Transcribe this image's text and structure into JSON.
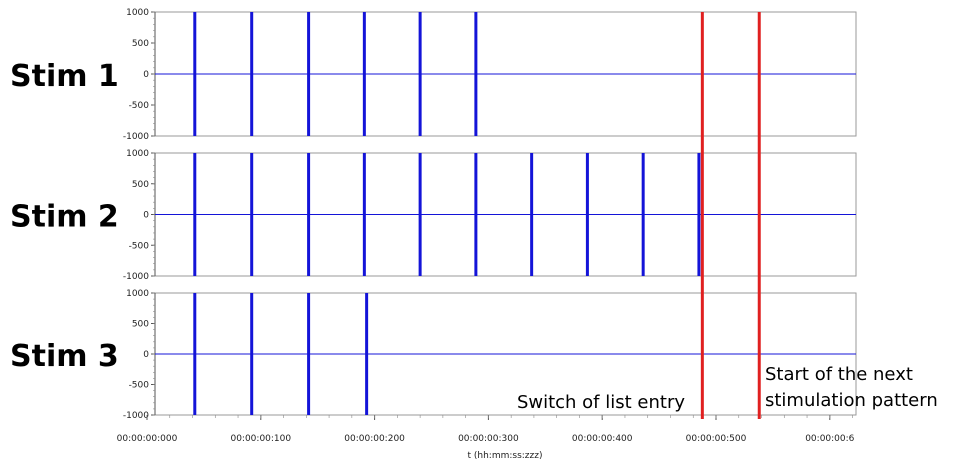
{
  "chart_data": {
    "type": "line",
    "xlabel": "t (hh:mm:ss:zzz)",
    "x_tick_labels": [
      "00:00:00:000",
      "00:00:00:100",
      "00:00:00:200",
      "00:00:00:300",
      "00:00:00:400",
      "00:00:00:500",
      "00:00:00:6"
    ],
    "x_range_ms": [
      0,
      640
    ],
    "y_tick_labels": [
      "1000",
      "500",
      "0",
      "-500",
      "-1000"
    ],
    "ylim": [
      -1000,
      1000
    ],
    "grid": false,
    "panels": [
      {
        "name": "Stim 1",
        "pulse_times_ms": [
          42,
          92,
          142,
          191,
          240,
          289
        ]
      },
      {
        "name": "Stim 2",
        "pulse_times_ms": [
          42,
          92,
          142,
          191,
          240,
          289,
          338,
          387,
          436,
          485
        ]
      },
      {
        "name": "Stim 3",
        "pulse_times_ms": [
          42,
          92,
          142,
          193
        ]
      }
    ],
    "markers": [
      {
        "time_ms": 488,
        "color": "#e02020",
        "label": "Switch of list entry"
      },
      {
        "time_ms": 538,
        "color": "#e02020",
        "label": "Start of the next\nstimulation pattern"
      }
    ],
    "pulse_color": "#1414d8",
    "baseline_color": "#1414d8"
  }
}
